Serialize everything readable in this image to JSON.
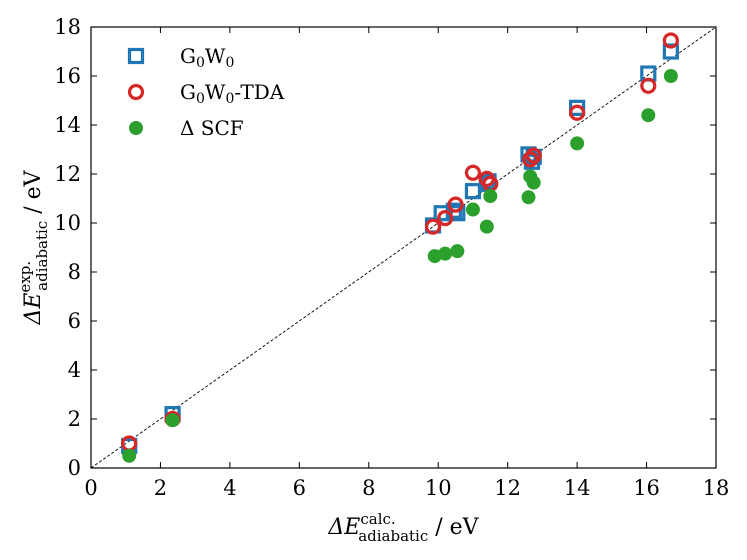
{
  "chart_data": {
    "type": "scatter",
    "xlabel": {
      "base": "ΔE",
      "sup": "calc.",
      "sub": "adiabatic",
      "unit": " / eV"
    },
    "ylabel": {
      "base": "ΔE",
      "sup": "exp.",
      "sub": "adiabatic",
      "unit": " / eV"
    },
    "xlim": [
      0,
      18
    ],
    "ylim": [
      0,
      18
    ],
    "xticks": [
      "0",
      "2",
      "4",
      "6",
      "8",
      "10",
      "12",
      "14",
      "16",
      "18"
    ],
    "yticks": [
      "0",
      "2",
      "4",
      "6",
      "8",
      "10",
      "12",
      "14",
      "16",
      "18"
    ],
    "grid": false,
    "reference_line": "y = x",
    "legend_position": "top-left",
    "series": [
      {
        "name": "G0W0",
        "name_parts": {
          "a": "G",
          "a_sub": "0",
          "b": "W",
          "b_sub": "0",
          "suffix": ""
        },
        "marker": "open-square",
        "color": "#1f77b4",
        "points": [
          [
            1.1,
            0.9
          ],
          [
            2.35,
            2.2
          ],
          [
            9.85,
            9.9
          ],
          [
            10.1,
            10.4
          ],
          [
            10.45,
            10.5
          ],
          [
            10.55,
            10.4
          ],
          [
            11.0,
            11.3
          ],
          [
            11.4,
            11.6
          ],
          [
            11.45,
            11.7
          ],
          [
            12.6,
            12.8
          ],
          [
            12.7,
            12.5
          ],
          [
            12.75,
            12.7
          ],
          [
            14.0,
            14.7
          ],
          [
            16.05,
            16.1
          ],
          [
            16.7,
            17.0
          ]
        ]
      },
      {
        "name": "G0W0-TDA",
        "name_parts": {
          "a": "G",
          "a_sub": "0",
          "b": "W",
          "b_sub": "0",
          "suffix": "-TDA"
        },
        "marker": "open-circle",
        "color": "#d62728",
        "points": [
          [
            1.1,
            1.0
          ],
          [
            2.35,
            2.0
          ],
          [
            9.85,
            9.85
          ],
          [
            10.2,
            10.2
          ],
          [
            10.5,
            10.75
          ],
          [
            11.0,
            12.05
          ],
          [
            11.4,
            11.8
          ],
          [
            11.5,
            11.6
          ],
          [
            12.65,
            12.6
          ],
          [
            12.75,
            12.75
          ],
          [
            14.0,
            14.5
          ],
          [
            16.05,
            15.6
          ],
          [
            16.7,
            17.45
          ]
        ]
      },
      {
        "name": "Δ SCF",
        "name_parts": {
          "a": "Δ SCF",
          "a_sub": "",
          "b": "",
          "b_sub": "",
          "suffix": ""
        },
        "marker": "filled-circle",
        "color": "#2ca02c",
        "points": [
          [
            1.1,
            0.5
          ],
          [
            2.35,
            1.95
          ],
          [
            9.9,
            8.65
          ],
          [
            10.2,
            8.75
          ],
          [
            10.55,
            8.85
          ],
          [
            11.0,
            10.55
          ],
          [
            11.4,
            9.85
          ],
          [
            11.5,
            11.1
          ],
          [
            12.6,
            11.05
          ],
          [
            12.65,
            11.9
          ],
          [
            12.75,
            11.65
          ],
          [
            14.0,
            13.25
          ],
          [
            16.05,
            14.4
          ],
          [
            16.7,
            16.0
          ]
        ]
      }
    ]
  }
}
